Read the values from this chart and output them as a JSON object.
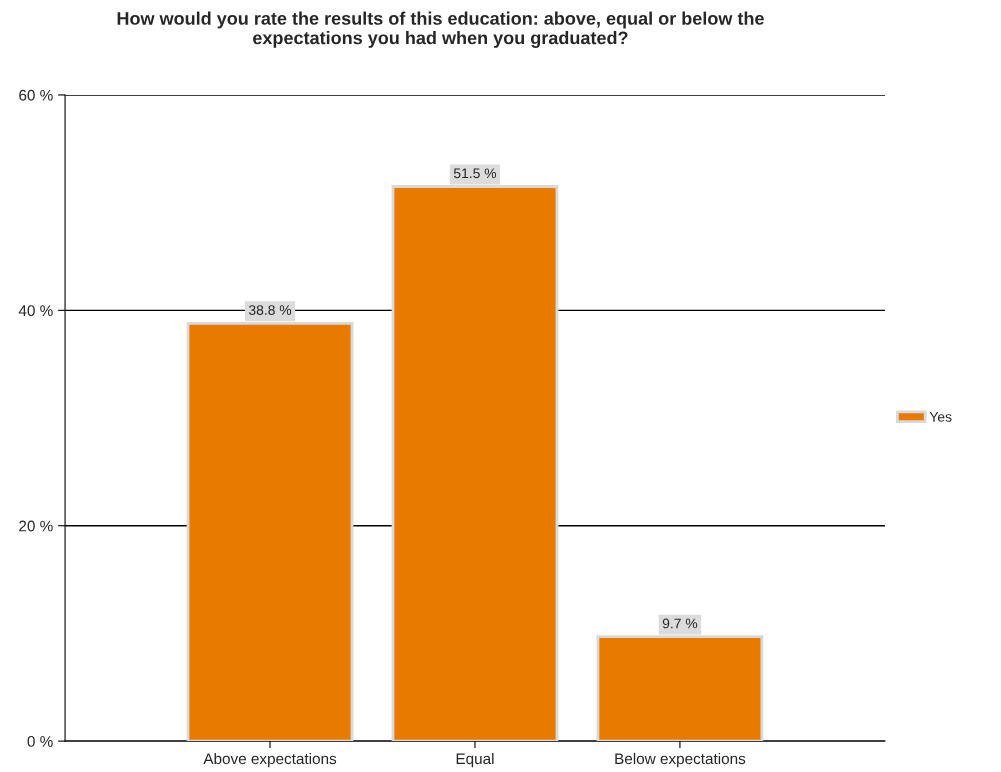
{
  "chart_data": {
    "type": "bar",
    "title": "How would you rate the results of this education: above, equal or below the\nexpectations you had when you graduated?",
    "categories": [
      "Above expectations",
      "Equal",
      "Below expectations"
    ],
    "series": [
      {
        "name": "Yes",
        "color": "#e87a00",
        "values": [
          38.8,
          51.5,
          9.7
        ],
        "value_labels": [
          "38.8 %",
          "51.5 %",
          "9.7 %"
        ]
      }
    ],
    "ylim": [
      0,
      60
    ],
    "yticks": [
      {
        "value": 0,
        "label": "0 %"
      },
      {
        "value": 20,
        "label": "20 %"
      },
      {
        "value": 40,
        "label": "40 %"
      },
      {
        "value": 60,
        "label": "60 %"
      }
    ],
    "grid": "y",
    "legend": "right"
  }
}
